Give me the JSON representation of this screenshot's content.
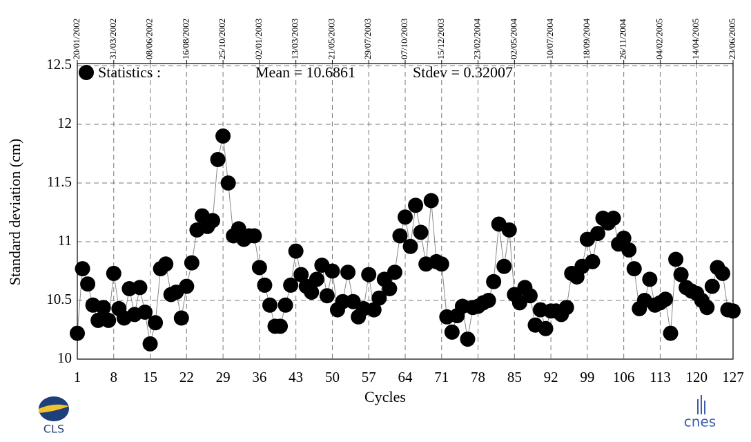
{
  "chart_data": {
    "type": "line",
    "ylabel": "Standard deviation (cm)",
    "xlabel": "Cycles",
    "annotations": [
      "Mean = 10.6861",
      "Stdev = 0.32007"
    ],
    "x": [
      1,
      2,
      3,
      4,
      5,
      6,
      7,
      8,
      9,
      10,
      11,
      12,
      13,
      14,
      15,
      16,
      17,
      18,
      19,
      20,
      21,
      22,
      23,
      24,
      25,
      26,
      27,
      28,
      29,
      30,
      31,
      32,
      33,
      34,
      35,
      36,
      37,
      38,
      39,
      40,
      41,
      42,
      43,
      44,
      45,
      46,
      47,
      48,
      49,
      50,
      51,
      52,
      53,
      54,
      55,
      56,
      57,
      58,
      59,
      60,
      61,
      62,
      63,
      64,
      65,
      66,
      67,
      68,
      69,
      70,
      71,
      72,
      73,
      74,
      75,
      76,
      77,
      78,
      79,
      80,
      81,
      82,
      83,
      84,
      85,
      86,
      87,
      88,
      89,
      90,
      91,
      92,
      93,
      94,
      95,
      96,
      97,
      98,
      99,
      100,
      101,
      102,
      103,
      104,
      105,
      106,
      107,
      108,
      109,
      110,
      111,
      112,
      113,
      114,
      115,
      116,
      117,
      118,
      119,
      120,
      121,
      122,
      123,
      124,
      125,
      126,
      127
    ],
    "series": [
      {
        "name": "Statistics :",
        "color": "#000000",
        "line_color": "#888888",
        "values": [
          10.22,
          10.77,
          10.64,
          10.46,
          10.33,
          10.44,
          10.33,
          10.73,
          10.43,
          10.35,
          10.6,
          10.38,
          10.61,
          10.4,
          10.13,
          10.31,
          10.77,
          10.81,
          10.55,
          10.57,
          10.35,
          10.62,
          10.82,
          11.1,
          11.22,
          11.13,
          11.18,
          11.7,
          11.9,
          11.5,
          11.05,
          11.11,
          11.02,
          11.05,
          11.05,
          10.78,
          10.63,
          10.46,
          10.28,
          10.28,
          10.46,
          10.63,
          10.92,
          10.72,
          10.62,
          10.57,
          10.68,
          10.8,
          10.54,
          10.75,
          10.42,
          10.49,
          10.74,
          10.49,
          10.36,
          10.43,
          10.72,
          10.42,
          10.52,
          10.68,
          10.6,
          10.74,
          11.05,
          11.21,
          10.96,
          11.31,
          11.08,
          10.81,
          11.35,
          10.83,
          10.81,
          10.36,
          10.23,
          10.37,
          10.45,
          10.17,
          10.44,
          10.45,
          10.48,
          10.5,
          10.66,
          11.15,
          10.79,
          11.1,
          10.55,
          10.48,
          10.61,
          10.54,
          10.29,
          10.42,
          10.26,
          10.41,
          10.41,
          10.38,
          10.44,
          10.73,
          10.7,
          10.79,
          11.02,
          10.83,
          11.07,
          11.2,
          11.16,
          11.2,
          10.98,
          11.03,
          10.93,
          10.77,
          10.43,
          10.5,
          10.68,
          10.46,
          10.48,
          10.51,
          10.22,
          10.85,
          10.72,
          10.61,
          10.58,
          10.56,
          10.5,
          10.44,
          10.62,
          10.78,
          10.73,
          10.42,
          10.41
        ]
      }
    ],
    "xlim": [
      1,
      127
    ],
    "xticks": [
      1,
      8,
      15,
      22,
      29,
      36,
      43,
      50,
      57,
      64,
      71,
      78,
      85,
      92,
      99,
      106,
      113,
      120,
      127
    ],
    "x2ticks": [
      {
        "value": 1,
        "label": "20/01/2002"
      },
      {
        "value": 8,
        "label": "31/03/2002"
      },
      {
        "value": 15,
        "label": "08/06/2002"
      },
      {
        "value": 22,
        "label": "16/08/2002"
      },
      {
        "value": 29,
        "label": "25/10/2002"
      },
      {
        "value": 36,
        "label": "02/01/2003"
      },
      {
        "value": 43,
        "label": "13/03/2003"
      },
      {
        "value": 50,
        "label": "21/05/2003"
      },
      {
        "value": 57,
        "label": "29/07/2003"
      },
      {
        "value": 64,
        "label": "07/10/2003"
      },
      {
        "value": 71,
        "label": "15/12/2003"
      },
      {
        "value": 78,
        "label": "23/02/2004"
      },
      {
        "value": 85,
        "label": "02/05/2004"
      },
      {
        "value": 92,
        "label": "10/07/2004"
      },
      {
        "value": 99,
        "label": "18/09/2004"
      },
      {
        "value": 106,
        "label": "26/11/2004"
      },
      {
        "value": 113,
        "label": "04/02/2005"
      },
      {
        "value": 120,
        "label": "14/04/2005"
      },
      {
        "value": 127,
        "label": "23/06/2005"
      }
    ],
    "ylim": [
      10,
      12.5
    ],
    "yticks": [
      10,
      10.5,
      11,
      11.5,
      12,
      12.5
    ],
    "grid": true
  },
  "logos": [
    "CLS",
    "cnes"
  ]
}
